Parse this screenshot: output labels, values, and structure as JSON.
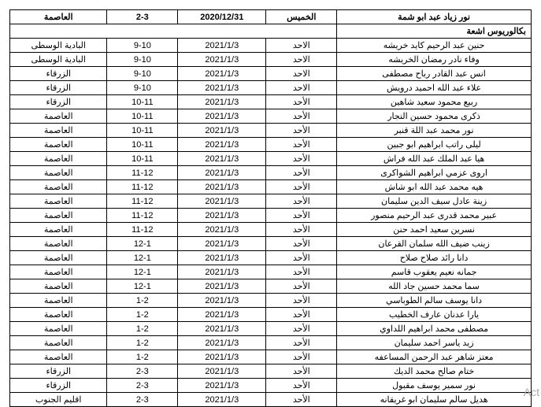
{
  "top_row": {
    "name": "نور زياد عبد ابو شمة",
    "day": "الخميس",
    "date": "2020/12/31",
    "time": "2-3",
    "location": "العاصمة"
  },
  "section_title": "بكالوريوس اشعة",
  "rows": [
    {
      "name": "حنين عبد الرحيم كايد خريشه",
      "day": "الاحد",
      "date": "2021/1/3",
      "time": "9-10",
      "location": "البادية الوسطى"
    },
    {
      "name": "وفاء نادر رمضان الخريشه",
      "day": "الاحد",
      "date": "2021/1/3",
      "time": "9-10",
      "location": "البادية الوسطى"
    },
    {
      "name": "انس عبد القادر رباح مصطفى",
      "day": "الاحد",
      "date": "2021/1/3",
      "time": "9-10",
      "location": "الزرقاء"
    },
    {
      "name": "علاء عبد الله احميد درويش",
      "day": "الاحد",
      "date": "2021/1/3",
      "time": "9-10",
      "location": "الزرقاء"
    },
    {
      "name": "ربيع محمود سعيد شاهين",
      "day": "الأحد",
      "date": "2021/1/3",
      "time": "10-11",
      "location": "الزرقاء"
    },
    {
      "name": "ذكرى محمود حسين النجار",
      "day": "الأحد",
      "date": "2021/1/3",
      "time": "10-11",
      "location": "العاصمة"
    },
    {
      "name": "نور محمد عبد اللة قنبر",
      "day": "الأحد",
      "date": "2021/1/3",
      "time": "10-11",
      "location": "العاصمة"
    },
    {
      "name": "ليلى راتب ابراهيم ابو جبين",
      "day": "الأحد",
      "date": "2021/1/3",
      "time": "10-11",
      "location": "العاصمة"
    },
    {
      "name": "هيا عبد الملك عبد الله فراش",
      "day": "الأحد",
      "date": "2021/1/3",
      "time": "10-11",
      "location": "العاصمة"
    },
    {
      "name": "اروى عزمي ابراهيم الشواكرى",
      "day": "الأحد",
      "date": "2021/1/3",
      "time": "11-12",
      "location": "العاصمة"
    },
    {
      "name": "هيه محمد عبد الله ابو شاش",
      "day": "الأحد",
      "date": "2021/1/3",
      "time": "11-12",
      "location": "العاصمة"
    },
    {
      "name": "زينة عادل سيف الدين سليمان",
      "day": "الأحد",
      "date": "2021/1/3",
      "time": "11-12",
      "location": "العاصمة"
    },
    {
      "name": "عبير محمد قدرى عبد الرحيم منصور",
      "day": "الأحد",
      "date": "2021/1/3",
      "time": "11-12",
      "location": "العاصمة"
    },
    {
      "name": "نسرين سعيد احمد حنن",
      "day": "الأحد",
      "date": "2021/1/3",
      "time": "11-12",
      "location": "العاصمة"
    },
    {
      "name": "زينب ضيف الله سلمان القرعان",
      "day": "الأحد",
      "date": "2021/1/3",
      "time": "12-1",
      "location": "العاصمة"
    },
    {
      "name": "دانا رائد صلاح صلاح",
      "day": "الأحد",
      "date": "2021/1/3",
      "time": "12-1",
      "location": "العاصمة"
    },
    {
      "name": "جمانه نعيم يعقوب قاسم",
      "day": "الأحد",
      "date": "2021/1/3",
      "time": "12-1",
      "location": "العاصمة"
    },
    {
      "name": "سما محمد حسين جاد الله",
      "day": "الأحد",
      "date": "2021/1/3",
      "time": "12-1",
      "location": "العاصمة"
    },
    {
      "name": "دانا يوسف سالم الطوباسي",
      "day": "الأحد",
      "date": "2021/1/3",
      "time": "1-2",
      "location": "العاصمة"
    },
    {
      "name": "يارا عدنان عارف الخطيب",
      "day": "الأحد",
      "date": "2021/1/3",
      "time": "1-2",
      "location": "العاصمة"
    },
    {
      "name": "مصطفى محمد ابراهيم اللداوي",
      "day": "الأحد",
      "date": "2021/1/3",
      "time": "1-2",
      "location": "العاصمة"
    },
    {
      "name": "زيد ياسر احمد سليمان",
      "day": "الأحد",
      "date": "2021/1/3",
      "time": "1-2",
      "location": "العاصمة"
    },
    {
      "name": "معتز شاهر عبد الرحمن المساعفه",
      "day": "الأحد",
      "date": "2021/1/3",
      "time": "1-2",
      "location": "العاصمة"
    },
    {
      "name": "ختام صالح محمد الديك",
      "day": "الأحد",
      "date": "2021/1/3",
      "time": "2-3",
      "location": "الزرقاء"
    },
    {
      "name": "نور سمير يوسف مقبول",
      "day": "الأحد",
      "date": "2021/1/3",
      "time": "2-3",
      "location": "الزرقاء"
    },
    {
      "name": "هديل سالم سليمان ابو غريقانه",
      "day": "الأحد",
      "date": "2021/1/3",
      "time": "2-3",
      "location": "اقليم الجنوب"
    }
  ],
  "watermark": "Act"
}
